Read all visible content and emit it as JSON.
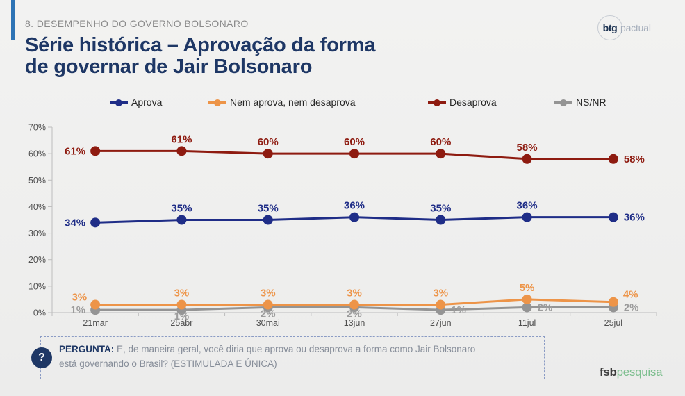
{
  "slide": {
    "kicker": "8. DESEMPENHO DO GOVERNO BOLSONARO",
    "title_line1": "Série histórica – Aprovação da forma",
    "title_line2": "de governar de Jair Bolsonaro"
  },
  "logos": {
    "btg_bold": "btg",
    "btg_light": "pactual",
    "fsb_bold": "fsb",
    "fsb_light": "pesquisa"
  },
  "question": {
    "icon": "?",
    "label": "PERGUNTA:",
    "line1": "E, de maneira geral, você diria que aprova ou desaprova a forma como Jair Bolsonaro",
    "line2": "está governando o Brasil? (ESTIMULADA E ÚNICA)"
  },
  "colors": {
    "accent_bar": "#2e74b5",
    "title_navy": "#1e3765",
    "axis": "#bdbdbd",
    "fsb_green": "#7cbe8e"
  },
  "chart_data": {
    "type": "line",
    "title": "Série histórica – Aprovação da forma de governar de Jair Bolsonaro",
    "categories": [
      "21mar",
      "25abr",
      "30mai",
      "13jun",
      "27jun",
      "11jul",
      "25jul"
    ],
    "series": [
      {
        "name": "Aprova",
        "color": "#1f2d87",
        "values": [
          34,
          35,
          35,
          36,
          35,
          36,
          36
        ],
        "label_pos": [
          "left",
          "above",
          "above",
          "above",
          "above",
          "above",
          "right"
        ]
      },
      {
        "name": "Nem aprova, nem desaprova",
        "color": "#ed9448",
        "values": [
          3,
          3,
          3,
          3,
          3,
          5,
          4
        ],
        "label_pos": [
          "upleft",
          "above",
          "above",
          "above",
          "above",
          "above",
          "upright"
        ]
      },
      {
        "name": "Desaprova",
        "color": "#8e1b10",
        "values": [
          61,
          61,
          60,
          60,
          60,
          58,
          58
        ],
        "label_pos": [
          "left",
          "above",
          "above",
          "above",
          "above",
          "above",
          "right"
        ]
      },
      {
        "name": "NS/NR",
        "color": "#949494",
        "label_color": "#9c9c9c",
        "values": [
          1,
          1,
          2,
          2,
          1,
          2,
          2
        ],
        "label_pos": [
          "left",
          "below",
          "below",
          "below",
          "right",
          "right",
          "right"
        ]
      }
    ],
    "ylim": [
      0,
      70
    ],
    "yticks": [
      "0%",
      "10%",
      "20%",
      "30%",
      "40%",
      "50%",
      "60%",
      "70%"
    ],
    "grid": false,
    "legend_position": "top",
    "value_suffix": "%"
  }
}
